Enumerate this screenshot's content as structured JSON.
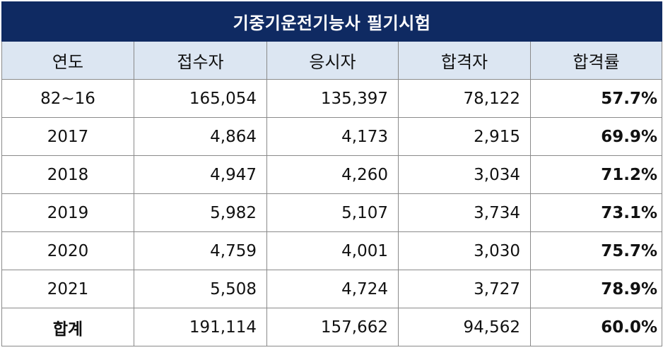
{
  "table": {
    "title": "기중기운전기능사 필기시험",
    "headers": [
      "연도",
      "접수자",
      "응시자",
      "합격자",
      "합격률"
    ],
    "rows": [
      {
        "year": "82~16",
        "applicants": "165,054",
        "examinees": "135,397",
        "passers": "78,122",
        "rate": "57.7%"
      },
      {
        "year": "2017",
        "applicants": "4,864",
        "examinees": "4,173",
        "passers": "2,915",
        "rate": "69.9%"
      },
      {
        "year": "2018",
        "applicants": "4,947",
        "examinees": "4,260",
        "passers": "3,034",
        "rate": "71.2%"
      },
      {
        "year": "2019",
        "applicants": "5,982",
        "examinees": "5,107",
        "passers": "3,734",
        "rate": "73.1%"
      },
      {
        "year": "2020",
        "applicants": "4,759",
        "examinees": "4,001",
        "passers": "3,030",
        "rate": "75.7%"
      },
      {
        "year": "2021",
        "applicants": "5,508",
        "examinees": "4,724",
        "passers": "3,727",
        "rate": "78.9%"
      }
    ],
    "total": {
      "year": "합계",
      "applicants": "191,114",
      "examinees": "157,662",
      "passers": "94,562",
      "rate": "60.0%"
    }
  },
  "colors": {
    "title_bg": "#0f2a62",
    "title_text": "#ffffff",
    "header_bg": "#dce6f2",
    "border": "#8a8a8a"
  }
}
